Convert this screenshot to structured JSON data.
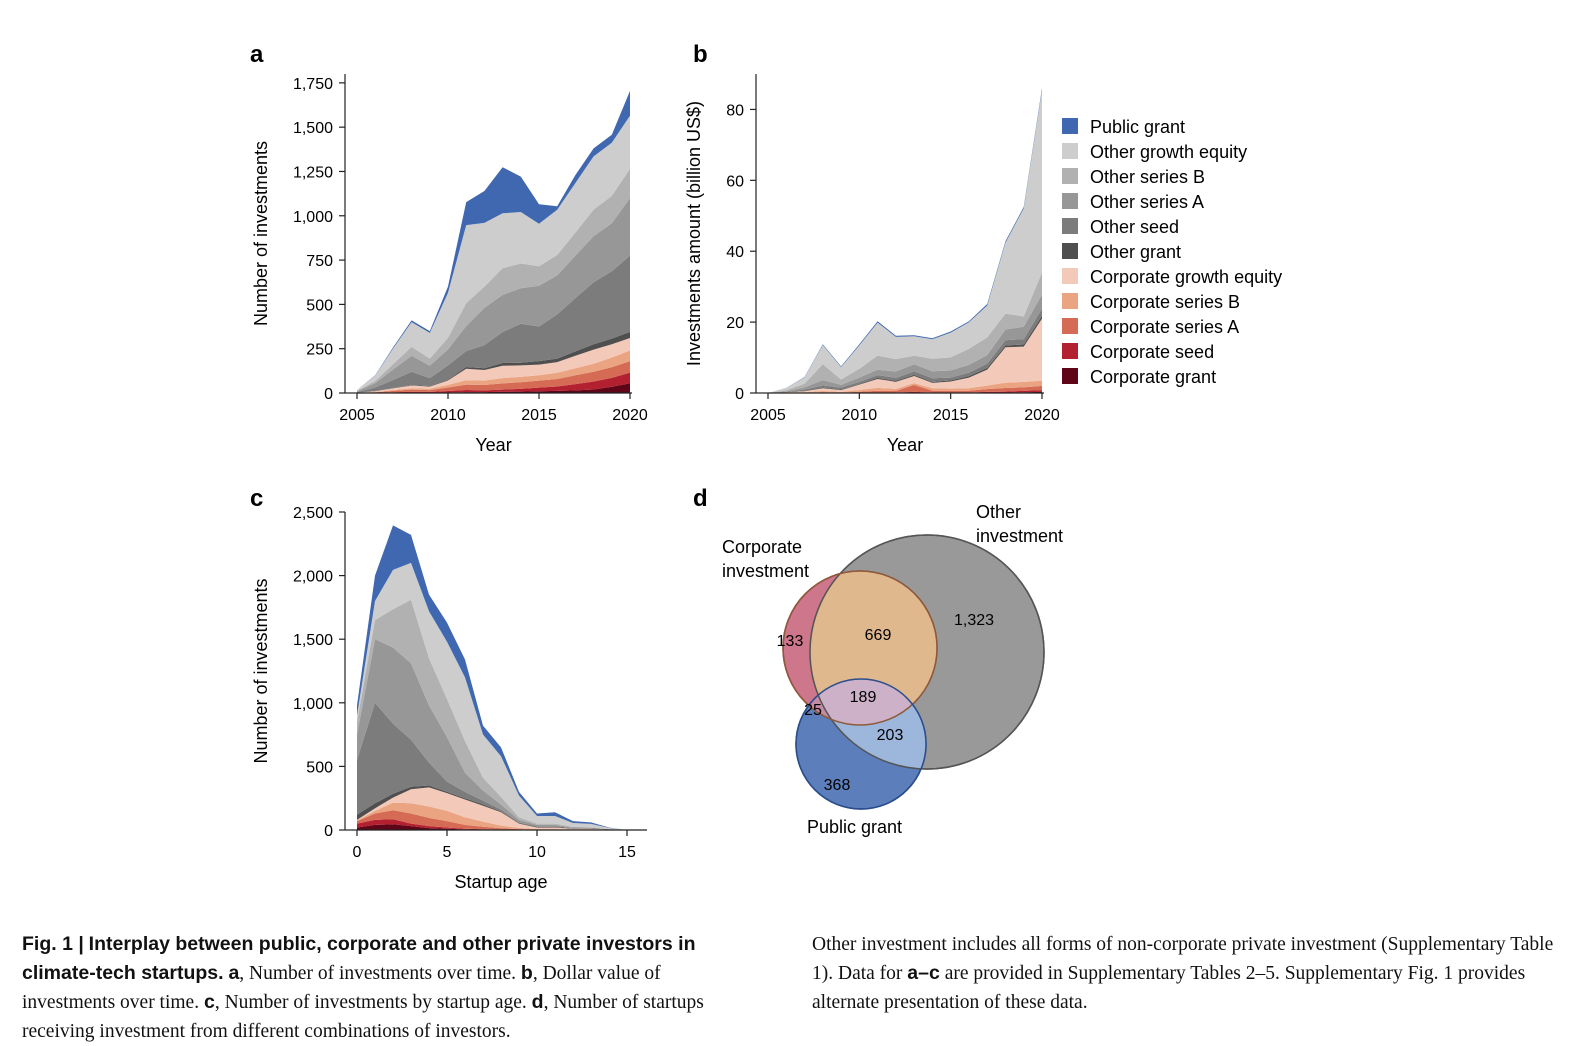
{
  "panels": {
    "a": {
      "letter": "a"
    },
    "b": {
      "letter": "b"
    },
    "c": {
      "letter": "c"
    },
    "d": {
      "letter": "d"
    }
  },
  "colors": {
    "Public grant": "#3f68b0",
    "Other growth equity": "#cdcdcd",
    "Other series B": "#b1b1b1",
    "Other series A": "#979797",
    "Other seed": "#7c7c7c",
    "Other grant": "#4f4f4f",
    "Corporate growth equity": "#f3c9b9",
    "Corporate series B": "#eba482",
    "Corporate series A": "#d56a55",
    "Corporate seed": "#b3202f",
    "Corporate grant": "#5e0618"
  },
  "legend": [
    "Public grant",
    "Other growth equity",
    "Other series B",
    "Other series A",
    "Other seed",
    "Other grant",
    "Corporate growth equity",
    "Corporate series B",
    "Corporate series A",
    "Corporate seed",
    "Corporate grant"
  ],
  "chart_data": [
    {
      "panel": "a",
      "type": "area",
      "stacked": true,
      "xlabel": "Year",
      "ylabel": "Number of investments",
      "xlim": [
        2005,
        2020
      ],
      "ylim": [
        0,
        1800
      ],
      "xticks": [
        2005,
        2010,
        2015,
        2020
      ],
      "yticks": [
        0,
        250,
        500,
        750,
        1000,
        1250,
        1500,
        1750
      ],
      "ytick_labels": [
        "0",
        "250",
        "500",
        "750",
        "1,000",
        "1,250",
        "1,500",
        "1,750"
      ],
      "x": [
        2005,
        2006,
        2007,
        2008,
        2009,
        2010,
        2011,
        2012,
        2013,
        2014,
        2015,
        2016,
        2017,
        2018,
        2019,
        2020
      ],
      "series": [
        {
          "name": "Corporate grant",
          "values": [
            0,
            0,
            1,
            2,
            2,
            3,
            5,
            5,
            7,
            8,
            10,
            12,
            15,
            20,
            35,
            55
          ]
        },
        {
          "name": "Corporate seed",
          "values": [
            0,
            1,
            3,
            5,
            4,
            8,
            12,
            10,
            12,
            15,
            20,
            25,
            35,
            45,
            50,
            60
          ]
        },
        {
          "name": "Corporate series A",
          "values": [
            1,
            3,
            8,
            12,
            10,
            20,
            30,
            30,
            35,
            38,
            40,
            42,
            50,
            55,
            60,
            65
          ]
        },
        {
          "name": "Corporate series B",
          "values": [
            0,
            2,
            5,
            8,
            8,
            15,
            25,
            25,
            30,
            30,
            30,
            35,
            40,
            45,
            55,
            60
          ]
        },
        {
          "name": "Corporate growth equity",
          "values": [
            1,
            4,
            10,
            15,
            12,
            25,
            65,
            60,
            70,
            65,
            60,
            60,
            70,
            80,
            75,
            70
          ]
        },
        {
          "name": "Other grant",
          "values": [
            0,
            1,
            2,
            3,
            3,
            5,
            10,
            10,
            15,
            15,
            20,
            20,
            25,
            30,
            32,
            35
          ]
        },
        {
          "name": "Other seed",
          "values": [
            3,
            20,
            45,
            75,
            45,
            80,
            90,
            130,
            175,
            220,
            195,
            250,
            300,
            350,
            380,
            430
          ]
        },
        {
          "name": "Other series A",
          "values": [
            5,
            25,
            60,
            90,
            70,
            90,
            140,
            210,
            210,
            200,
            230,
            220,
            240,
            260,
            270,
            325
          ]
        },
        {
          "name": "Other series B",
          "values": [
            2,
            12,
            30,
            50,
            40,
            65,
            130,
            120,
            150,
            140,
            110,
            115,
            130,
            150,
            155,
            165
          ]
        },
        {
          "name": "Other growth equity",
          "values": [
            5,
            30,
            90,
            140,
            145,
            255,
            440,
            360,
            310,
            290,
            240,
            255,
            280,
            300,
            300,
            300
          ]
        },
        {
          "name": "Public grant",
          "values": [
            0,
            2,
            6,
            10,
            10,
            35,
            130,
            180,
            260,
            200,
            110,
            20,
            45,
            45,
            45,
            140
          ]
        }
      ]
    },
    {
      "panel": "b",
      "type": "area",
      "stacked": true,
      "xlabel": "Year",
      "ylabel": "Investments amount (billion US$)",
      "xlim": [
        2005,
        2020
      ],
      "ylim": [
        0,
        90
      ],
      "xticks": [
        2005,
        2010,
        2015,
        2020
      ],
      "yticks": [
        0,
        20,
        40,
        60,
        80
      ],
      "ytick_labels": [
        "0",
        "20",
        "40",
        "60",
        "80"
      ],
      "x": [
        2005,
        2006,
        2007,
        2008,
        2009,
        2010,
        2011,
        2012,
        2013,
        2014,
        2015,
        2016,
        2017,
        2018,
        2019,
        2020
      ],
      "series": [
        {
          "name": "Corporate grant",
          "values": [
            0,
            0,
            0,
            0,
            0,
            0,
            0.05,
            0.05,
            0.1,
            0.05,
            0.05,
            0.05,
            0.1,
            0.1,
            0.2,
            0.3
          ]
        },
        {
          "name": "Corporate seed",
          "values": [
            0,
            0,
            0,
            0.05,
            0,
            0.05,
            0.1,
            0.1,
            0.2,
            0.1,
            0.1,
            0.1,
            0.2,
            0.3,
            0.4,
            0.5
          ]
        },
        {
          "name": "Corporate series A",
          "values": [
            0,
            0.05,
            0.1,
            0.2,
            0.1,
            0.3,
            0.5,
            0.4,
            2.0,
            0.5,
            0.5,
            0.5,
            0.8,
            1.0,
            1.0,
            1.2
          ]
        },
        {
          "name": "Corporate series B",
          "values": [
            0,
            0.05,
            0.1,
            0.3,
            0.2,
            0.5,
            0.8,
            0.6,
            0.5,
            0.7,
            0.6,
            0.7,
            1.0,
            1.5,
            1.5,
            1.5
          ]
        },
        {
          "name": "Corporate growth equity",
          "values": [
            0,
            0.1,
            0.3,
            0.8,
            0.5,
            1.5,
            2.5,
            2.0,
            2.0,
            1.5,
            2.0,
            3.0,
            4.5,
            10,
            10,
            17.5
          ]
        },
        {
          "name": "Other grant",
          "values": [
            0,
            0,
            0.1,
            0.2,
            0.2,
            0.2,
            0.3,
            0.3,
            0.3,
            0.3,
            0.3,
            0.4,
            0.5,
            0.5,
            0.6,
            0.8
          ]
        },
        {
          "name": "Other seed",
          "values": [
            0,
            0.1,
            0.4,
            0.6,
            0.5,
            0.6,
            0.8,
            0.8,
            1.0,
            1.0,
            0.8,
            1.0,
            1.2,
            1.5,
            1.5,
            2.0
          ]
        },
        {
          "name": "Other series A",
          "values": [
            0,
            0.2,
            0.6,
            1.5,
            0.8,
            1.2,
            1.5,
            1.8,
            2.0,
            2.0,
            2.0,
            2.2,
            2.4,
            3.0,
            3.5,
            4.0
          ]
        },
        {
          "name": "Other series B",
          "values": [
            0,
            0.3,
            1.0,
            4.5,
            1.5,
            2.5,
            4.0,
            3.5,
            2.4,
            3.5,
            3.7,
            4.5,
            5.0,
            4.5,
            2.9,
            6.2
          ]
        },
        {
          "name": "Other growth equity",
          "values": [
            0,
            0.6,
            1.8,
            5.4,
            3.5,
            6.6,
            9.3,
            6.3,
            5.5,
            5.5,
            7.0,
            7.5,
            9.0,
            20,
            30.5,
            51.5
          ]
        },
        {
          "name": "Public grant",
          "values": [
            0,
            0.05,
            0.1,
            0.2,
            0.2,
            0.3,
            0.4,
            0.3,
            0.3,
            0.3,
            0.3,
            0.3,
            0.4,
            0.4,
            0.4,
            0.5
          ]
        }
      ]
    },
    {
      "panel": "c",
      "type": "area",
      "stacked": true,
      "xlabel": "Startup age",
      "ylabel": "Number of investments",
      "xlim": [
        0,
        16
      ],
      "ylim": [
        0,
        2500
      ],
      "xticks": [
        0,
        5,
        10,
        15
      ],
      "yticks": [
        0,
        500,
        1000,
        1500,
        2000,
        2500
      ],
      "ytick_labels": [
        "0",
        "500",
        "1,000",
        "1,500",
        "2,000",
        "2,500"
      ],
      "x": [
        0,
        1,
        2,
        3,
        4,
        5,
        6,
        7,
        8,
        9,
        10,
        11,
        12,
        13,
        14,
        15
      ],
      "series": [
        {
          "name": "Corporate grant",
          "values": [
            20,
            40,
            45,
            30,
            15,
            10,
            5,
            3,
            2,
            1,
            0,
            0,
            0,
            0,
            0,
            0
          ]
        },
        {
          "name": "Corporate seed",
          "values": [
            30,
            40,
            40,
            20,
            15,
            10,
            5,
            3,
            2,
            1,
            0,
            0,
            0,
            0,
            0,
            0
          ]
        },
        {
          "name": "Corporate series A",
          "values": [
            20,
            50,
            70,
            80,
            65,
            50,
            30,
            20,
            10,
            5,
            2,
            2,
            1,
            0,
            0,
            0
          ]
        },
        {
          "name": "Corporate series B",
          "values": [
            5,
            20,
            60,
            80,
            90,
            80,
            60,
            40,
            20,
            10,
            5,
            5,
            2,
            2,
            0,
            0
          ]
        },
        {
          "name": "Corporate growth equity",
          "values": [
            5,
            20,
            40,
            110,
            150,
            140,
            140,
            125,
            106,
            33,
            13,
            13,
            7,
            8,
            5,
            0
          ]
        },
        {
          "name": "Other grant",
          "values": [
            40,
            40,
            30,
            20,
            15,
            10,
            10,
            10,
            5,
            5,
            5,
            5,
            3,
            3,
            2,
            0
          ]
        },
        {
          "name": "Other seed",
          "values": [
            430,
            790,
            550,
            370,
            180,
            80,
            50,
            30,
            15,
            5,
            5,
            5,
            2,
            0,
            0,
            0
          ]
        },
        {
          "name": "Other series A",
          "values": [
            200,
            500,
            600,
            600,
            450,
            350,
            150,
            80,
            40,
            20,
            10,
            10,
            5,
            5,
            0,
            0
          ]
        },
        {
          "name": "Other series B",
          "values": [
            100,
            150,
            300,
            500,
            370,
            300,
            250,
            100,
            60,
            20,
            10,
            10,
            5,
            5,
            0,
            0
          ]
        },
        {
          "name": "Other growth equity",
          "values": [
            50,
            150,
            310,
            290,
            370,
            450,
            500,
            340,
            320,
            170,
            60,
            60,
            30,
            25,
            10,
            0
          ]
        },
        {
          "name": "Public grant",
          "values": [
            80,
            200,
            350,
            220,
            130,
            150,
            140,
            70,
            70,
            30,
            20,
            30,
            15,
            12,
            3,
            0
          ]
        }
      ]
    },
    {
      "panel": "d",
      "type": "venn",
      "sets": [
        "Corporate investment",
        "Other investment",
        "Public grant"
      ],
      "regions": {
        "corporate_only": "133",
        "corporate_other": "669",
        "other_only": "1,323",
        "corporate_other_public": "189",
        "corporate_public": "25",
        "other_public": "203",
        "public_only": "368"
      },
      "set_labels": {
        "corporate": [
          "Corporate",
          "investment"
        ],
        "other": [
          "Other",
          "investment"
        ],
        "public": "Public grant"
      }
    }
  ],
  "caption": {
    "fig_label": "Fig. 1 |",
    "bold_title": "Interplay between public, corporate and other private investors in climate-tech startups.",
    "a_letter": "a",
    "a_text": ", Number of investments over time.",
    "b_letter": "b",
    "b_text": ", Dollar value of investments over time.",
    "c_letter": "c",
    "c_text": ", Number of investments by startup age.",
    "d_letter": "d",
    "d_text": ", Number of startups receiving investment from different combinations of investors.",
    "right_1": "Other investment includes all forms of non-corporate private investment (Supplementary Table 1). Data for",
    "right_ac": "a–c",
    "right_2": "are provided in Supplementary Tables 2–5. Supplementary Fig. 1 provides alternate presentation of these data."
  }
}
